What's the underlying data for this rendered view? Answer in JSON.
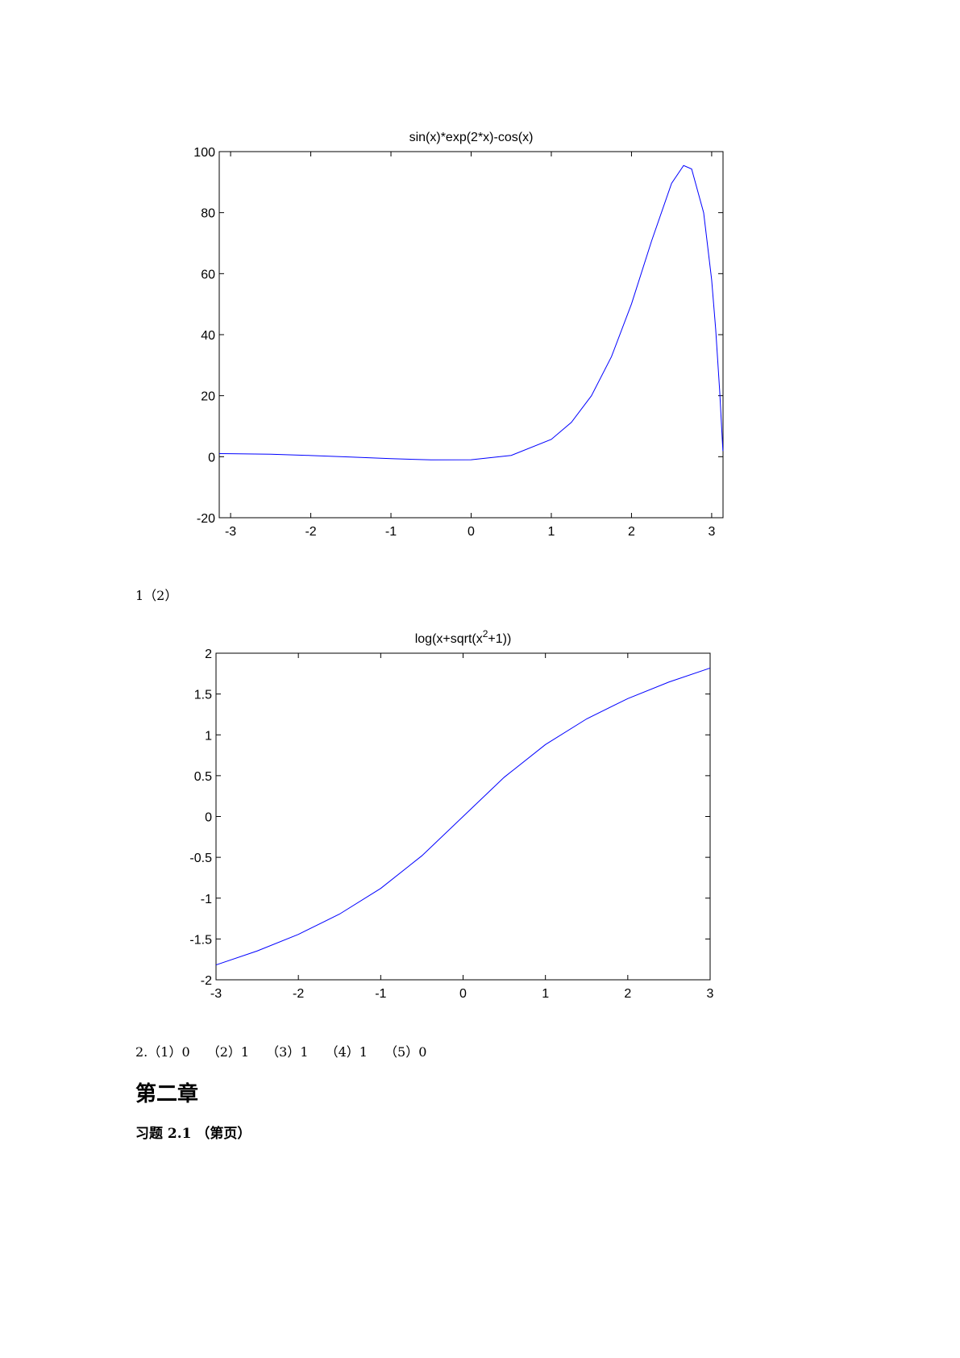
{
  "chart_data": [
    {
      "type": "line",
      "title": "sin(x)*exp(2*x)-cos(x)",
      "color": "#0000ff",
      "x": [
        -3.1416,
        -3,
        -2.5,
        -2,
        -1.5,
        -1,
        -0.5,
        0,
        0.5,
        1,
        1.25,
        1.5,
        1.75,
        2,
        2.25,
        2.5,
        2.65,
        2.75,
        2.9,
        3,
        3.05,
        3.1,
        3.14
      ],
      "values": [
        1,
        0.99,
        0.8,
        0.4,
        -0.12,
        -0.65,
        -1.05,
        -1,
        0.43,
        5.68,
        11.25,
        19.96,
        32.77,
        50.06,
        70.66,
        89.6,
        95.44,
        94.32,
        79.97,
        57.92,
        41.8,
        21.5,
        1.85
      ],
      "xlim": [
        -3.1416,
        3.1416
      ],
      "ylim": [
        -20,
        100
      ],
      "xticks": [
        -3,
        -2,
        -1,
        0,
        1,
        2,
        3
      ],
      "yticks": [
        -20,
        0,
        20,
        40,
        60,
        80,
        100
      ]
    },
    {
      "type": "line",
      "title": "log(x+sqrt(x",
      "title_superscript": "2",
      "title_end": "+1))",
      "color": "#0000ff",
      "x": [
        -3,
        -2.5,
        -2,
        -1.5,
        -1,
        -0.5,
        0,
        0.5,
        1,
        1.5,
        2,
        2.5,
        3
      ],
      "values": [
        -1.818,
        -1.647,
        -1.444,
        -1.195,
        -0.881,
        -0.481,
        0,
        0.481,
        0.881,
        1.195,
        1.444,
        1.647,
        1.818
      ],
      "xlim": [
        -3,
        3
      ],
      "ylim": [
        -2,
        2
      ],
      "xticks": [
        -3,
        -2,
        -1,
        0,
        1,
        2,
        3
      ],
      "yticks": [
        -2,
        -1.5,
        -1,
        -0.5,
        0,
        0.5,
        1,
        1.5,
        2
      ]
    }
  ],
  "paragraphs": [
    "1（2）",
    "2.（1）0　 （2）1　 （3）1　 （4）1　 （5）0",
    "第二章",
    "习题 2.1 （第页）"
  ]
}
